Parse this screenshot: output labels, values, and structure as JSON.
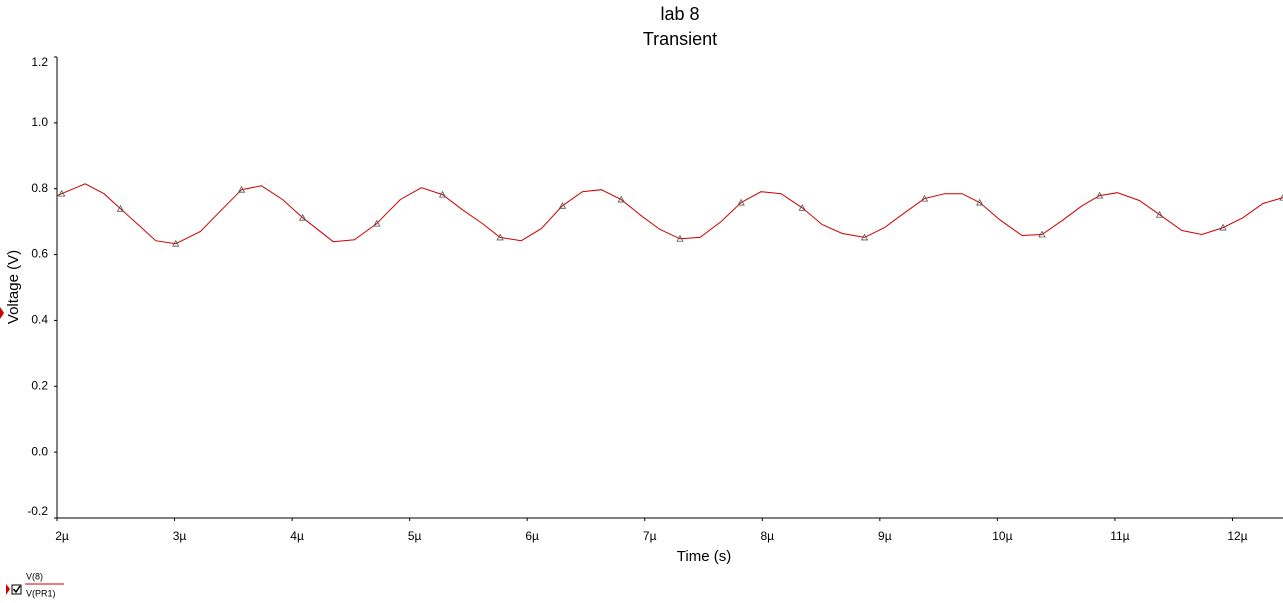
{
  "chart_data": {
    "type": "line",
    "title": "lab 8",
    "subtitle": "Transient",
    "x_label": "Time (s)",
    "y_label": "Voltage (V)",
    "x": [
      2.0,
      2.04,
      2.24,
      2.4,
      2.54,
      2.7,
      2.84,
      3.01,
      3.22,
      3.4,
      3.57,
      3.74,
      3.92,
      4.09,
      4.35,
      4.53,
      4.72,
      4.92,
      5.1,
      5.28,
      5.45,
      5.62,
      5.77,
      5.95,
      6.12,
      6.3,
      6.47,
      6.63,
      6.8,
      6.97,
      7.13,
      7.3,
      7.47,
      7.65,
      7.82,
      7.99,
      8.16,
      8.34,
      8.51,
      8.68,
      8.87,
      9.04,
      9.21,
      9.38,
      9.55,
      9.7,
      9.85,
      10.02,
      10.21,
      10.38,
      10.55,
      10.72,
      10.87,
      11.02,
      11.21,
      11.38,
      11.57,
      11.74,
      11.92,
      12.09,
      12.26,
      12.43
    ],
    "series": [
      {
        "name": "V(8)",
        "color": "#cc0000",
        "values": [
          0.779,
          0.785,
          0.815,
          0.785,
          0.739,
          0.688,
          0.642,
          0.633,
          0.67,
          0.736,
          0.797,
          0.809,
          0.767,
          0.712,
          0.639,
          0.645,
          0.694,
          0.767,
          0.803,
          0.782,
          0.736,
          0.694,
          0.652,
          0.642,
          0.679,
          0.748,
          0.791,
          0.797,
          0.767,
          0.718,
          0.676,
          0.648,
          0.652,
          0.7,
          0.758,
          0.791,
          0.785,
          0.742,
          0.691,
          0.664,
          0.652,
          0.682,
          0.727,
          0.77,
          0.785,
          0.785,
          0.758,
          0.706,
          0.658,
          0.661,
          0.703,
          0.748,
          0.779,
          0.788,
          0.764,
          0.721,
          0.673,
          0.661,
          0.682,
          0.712,
          0.755,
          0.773
        ]
      }
    ],
    "probe": "V(PR1)",
    "xlim": [
      2,
      12.43
    ],
    "xticks": [
      {
        "value": 2,
        "label": "2µ"
      },
      {
        "value": 3,
        "label": "3µ"
      },
      {
        "value": 4,
        "label": "4µ"
      },
      {
        "value": 5,
        "label": "5µ"
      },
      {
        "value": 6,
        "label": "6µ"
      },
      {
        "value": 7,
        "label": "7µ"
      },
      {
        "value": 8,
        "label": "8µ"
      },
      {
        "value": 9,
        "label": "9µ"
      },
      {
        "value": 10,
        "label": "10µ"
      },
      {
        "value": 11,
        "label": "11µ"
      },
      {
        "value": 12,
        "label": "12µ"
      }
    ],
    "ylim": [
      -0.2,
      1.2
    ],
    "yticks": [
      -0.2,
      {
        "value": 0,
        "label": "0.0"
      },
      0.2,
      0.4,
      0.6,
      0.8,
      {
        "value": 1,
        "label": "1.0"
      },
      1.2
    ],
    "grid": false
  }
}
